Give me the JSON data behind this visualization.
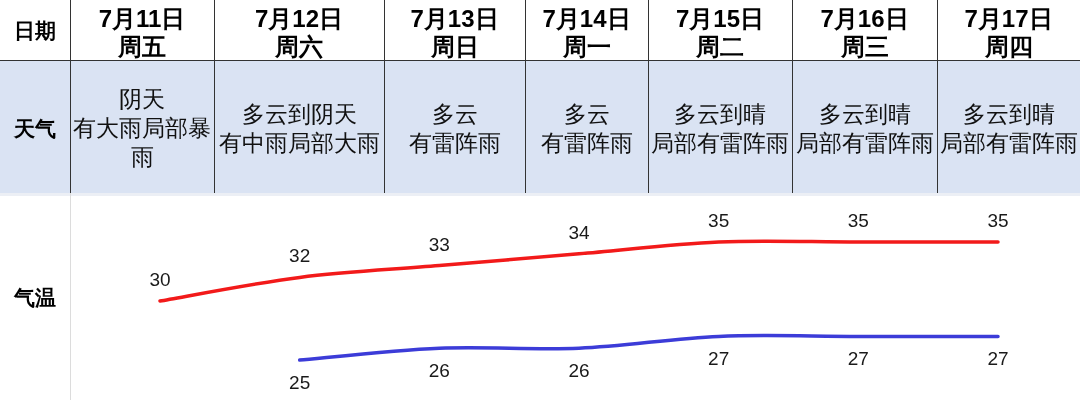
{
  "chart_data": {
    "type": "line",
    "xlabel": "日期",
    "ylabel": "气温",
    "categories": [
      "7月11日周五",
      "7月12日周六",
      "7月13日周日",
      "7月14日周一",
      "7月15日周二",
      "7月16日周三",
      "7月17日周四"
    ],
    "series": [
      {
        "color": "#f21a1a",
        "values": [
          30,
          32,
          33,
          34,
          35,
          35,
          35
        ]
      },
      {
        "color": "#3c3cd8",
        "values": [
          null,
          25,
          26,
          26,
          27,
          27,
          27
        ]
      }
    ],
    "data_labels": true,
    "annotations": [
      "天气",
      "阴天",
      "有大雨局部暴雨",
      "多云到阴天",
      "有中雨局部大雨",
      "多云",
      "有雷阵雨",
      "多云",
      "有雷阵雨",
      "多云到晴",
      "局部有雷阵雨",
      "多云到晴",
      "局部有雷阵雨",
      "多云到晴",
      "局部有雷阵雨"
    ]
  }
}
